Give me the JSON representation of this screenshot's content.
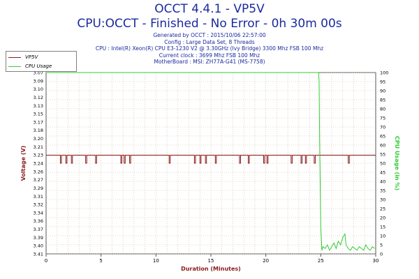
{
  "header": {
    "title": "OCCT 4.4.1 - VP5V",
    "subtitle": "CPU:OCCT - Finished - No Error - 0h 30m 00s",
    "meta_lines": [
      "Generated by OCCT : 2015/10/06 22:57:00",
      "Config : Large Data Set, 8 Threads",
      "CPU : Intel(R) Xeon(R) CPU E3-1230 V2 @ 3.30GHz (Ivy Bridge) 3300 Mhz FSB 100 Mhz",
      "Current clock : 3699 Mhz FSB 100 Mhz",
      "MotherBoard : MSI: ZH77A-G41 (MS-7758)"
    ]
  },
  "colors": {
    "voltage": "#8b1a1a",
    "cpu_usage": "#33cc33",
    "title": "#1a2a9e",
    "grid": "#c8b496",
    "axis_text": "#000000"
  },
  "chart_data": {
    "type": "line",
    "xlabel": "Duration (Minutes)",
    "ylabel": "Voltage (V)",
    "y2label": "CPU Usage (in %)",
    "xlim": [
      0,
      30
    ],
    "ylim": [
      3.07,
      3.41
    ],
    "y2lim": [
      0,
      100
    ],
    "xticks": [
      0,
      5,
      10,
      15,
      20,
      25,
      30
    ],
    "yticks": [
      3.07,
      3.09,
      3.1,
      3.12,
      3.13,
      3.15,
      3.17,
      3.18,
      3.2,
      3.21,
      3.23,
      3.24,
      3.26,
      3.27,
      3.29,
      3.31,
      3.32,
      3.34,
      3.36,
      3.37,
      3.39,
      3.4,
      3.41
    ],
    "y2ticks": [
      0,
      5,
      10,
      15,
      20,
      25,
      30,
      35,
      40,
      45,
      50,
      55,
      60,
      65,
      70,
      75,
      80,
      85,
      90,
      95,
      100
    ],
    "legend": [
      "VP5V",
      "CPU Usage"
    ],
    "legend_position": "top-left",
    "grid": true,
    "series": [
      {
        "name": "VP5V",
        "axis": "left",
        "baseline": 3.255,
        "dip": 3.24,
        "dips": [
          [
            1.3,
            1.4
          ],
          [
            1.8,
            1.9
          ],
          [
            2.3,
            2.4
          ],
          [
            3.6,
            3.7
          ],
          [
            4.5,
            4.6
          ],
          [
            6.8,
            6.9
          ],
          [
            7.1,
            7.2
          ],
          [
            7.6,
            7.7
          ],
          [
            11.2,
            11.3
          ],
          [
            13.5,
            13.6
          ],
          [
            14.0,
            14.1
          ],
          [
            14.5,
            14.6
          ],
          [
            15.4,
            15.5
          ],
          [
            17.6,
            17.7
          ],
          [
            18.4,
            18.5
          ],
          [
            19.8,
            19.9
          ],
          [
            20.1,
            20.2
          ],
          [
            22.3,
            22.4
          ],
          [
            23.2,
            23.3
          ],
          [
            23.6,
            23.7
          ],
          [
            24.4,
            24.5
          ],
          [
            27.5,
            27.6
          ]
        ]
      },
      {
        "name": "CPU Usage",
        "axis": "right",
        "x": [
          0,
          24.8,
          24.85,
          24.9,
          25.0,
          25.1,
          25.2,
          25.4,
          25.6,
          25.8,
          26.0,
          26.2,
          26.4,
          26.6,
          26.8,
          27.0,
          27.2,
          27.3,
          27.5,
          27.7,
          27.9,
          28.1,
          28.3,
          28.5,
          28.7,
          28.9,
          29.1,
          29.3,
          29.5,
          29.7,
          29.9
        ],
        "values": [
          100,
          100,
          95,
          60,
          15,
          2,
          4,
          3,
          5,
          2,
          4,
          6,
          3,
          7,
          5,
          9,
          11,
          5,
          3,
          2,
          4,
          3,
          2,
          4,
          3,
          2,
          5,
          3,
          2,
          4,
          3
        ]
      }
    ]
  }
}
